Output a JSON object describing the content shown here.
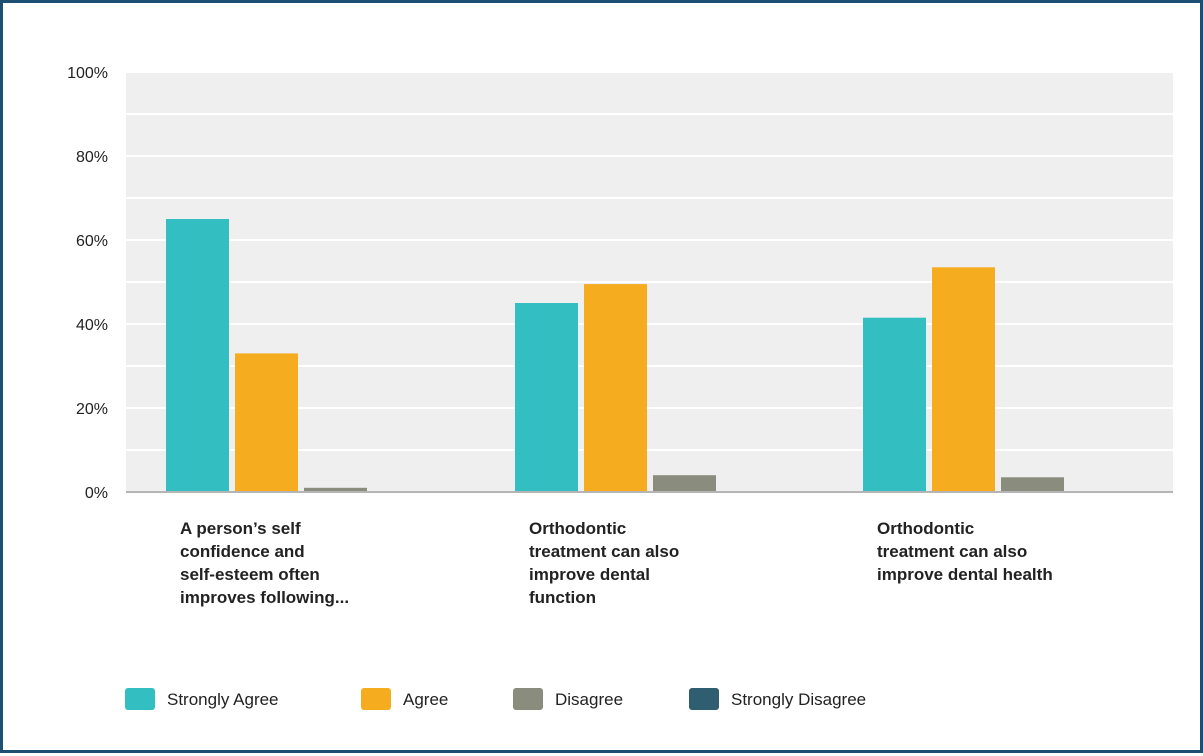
{
  "chart_data": {
    "type": "bar",
    "categories": [
      [
        "A person’s self",
        "confidence and",
        "self-esteem often",
        "improves following..."
      ],
      [
        "Orthodontic",
        "treatment can also",
        "improve dental",
        "function"
      ],
      [
        "Orthodontic",
        "treatment can also",
        "improve dental health"
      ]
    ],
    "series": [
      {
        "name": "Strongly Agree",
        "color": "#33bfc1",
        "values": [
          65,
          45,
          41.5
        ]
      },
      {
        "name": "Agree",
        "color": "#f5ac1f",
        "values": [
          33,
          49.5,
          53.5
        ]
      },
      {
        "name": "Disagree",
        "color": "#8a8c7d",
        "values": [
          1,
          4,
          3.5
        ]
      },
      {
        "name": "Strongly Disagree",
        "color": "#2e5e70",
        "values": [
          0,
          0,
          0
        ]
      }
    ],
    "ylim": [
      0,
      100
    ],
    "yticks": [
      "0%",
      "20%",
      "40%",
      "60%",
      "80%",
      "100%"
    ],
    "grid": true,
    "legend_position": "bottom-left"
  }
}
